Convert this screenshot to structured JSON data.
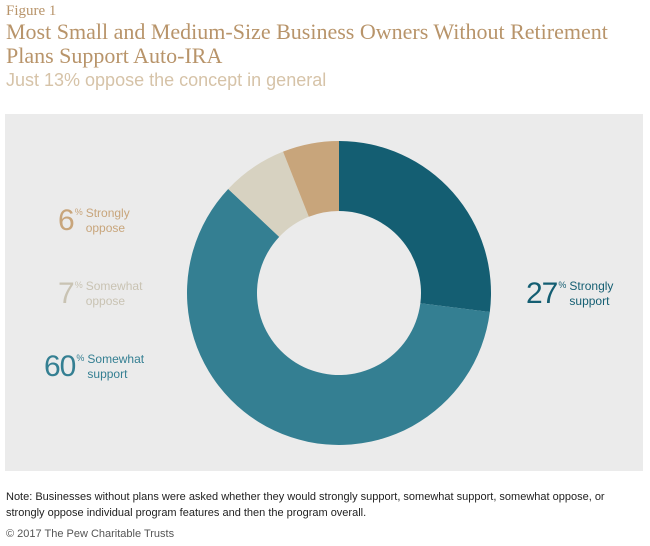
{
  "figure_label": "Figure 1",
  "chart_data": {
    "type": "pie",
    "title": "Most Small and Medium-Size Business Owners Without Retirement Plans Support Auto-IRA",
    "subtitle": "Just 13% oppose the concept in general",
    "slices": [
      {
        "label": "Strongly support",
        "label_line1": "Strongly",
        "label_line2": "support",
        "value": 27,
        "color": "#145e72"
      },
      {
        "label": "Somewhat support",
        "label_line1": "Somewhat",
        "label_line2": "support",
        "value": 60,
        "color": "#347f92"
      },
      {
        "label": "Somewhat oppose",
        "label_line1": "Somewhat",
        "label_line2": "oppose",
        "value": 7,
        "color": "#d7d2c1"
      },
      {
        "label": "Strongly oppose",
        "label_line1": "Strongly",
        "label_line2": "oppose",
        "value": 6,
        "color": "#c8a57b"
      }
    ],
    "unit": "%"
  },
  "note": "Note: Businesses without plans were asked whether they would strongly support, somewhat support, somewhat oppose, or strongly oppose individual program features and then the program overall.",
  "copyright": "© 2017 The Pew Charitable Trusts",
  "colors": {
    "title": "#b8946a",
    "subtitle": "#d6c3a8",
    "panel": "#ebebeb",
    "label_strongly_support": "#145e72",
    "label_somewhat_support": "#347f92",
    "label_somewhat_oppose": "#c9c3b3",
    "label_strongly_oppose": "#c8a57b"
  }
}
